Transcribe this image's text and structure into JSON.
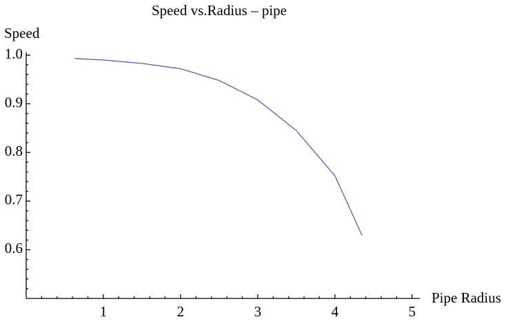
{
  "chart_data": {
    "type": "line",
    "title": "Speed vs.Radius – pipe",
    "x_label": "Pipe Radius",
    "y_label": "Speed",
    "x": [
      0.63,
      1,
      1.5,
      2,
      2.5,
      3,
      3.5,
      4,
      4.35
    ],
    "series": [
      {
        "name": "Speed",
        "color": "#5a5ab4",
        "values": [
          0.993,
          0.99,
          0.983,
          0.972,
          0.948,
          0.908,
          0.845,
          0.752,
          0.63
        ]
      }
    ],
    "xlim": [
      0,
      5.1
    ],
    "ylim": [
      0.5,
      1.0
    ],
    "xticks": [
      1,
      2,
      3,
      4,
      5
    ],
    "yticks": [
      0.6,
      0.7,
      0.8,
      0.9,
      {
        "value": 1.0,
        "label": "1.0"
      }
    ]
  }
}
